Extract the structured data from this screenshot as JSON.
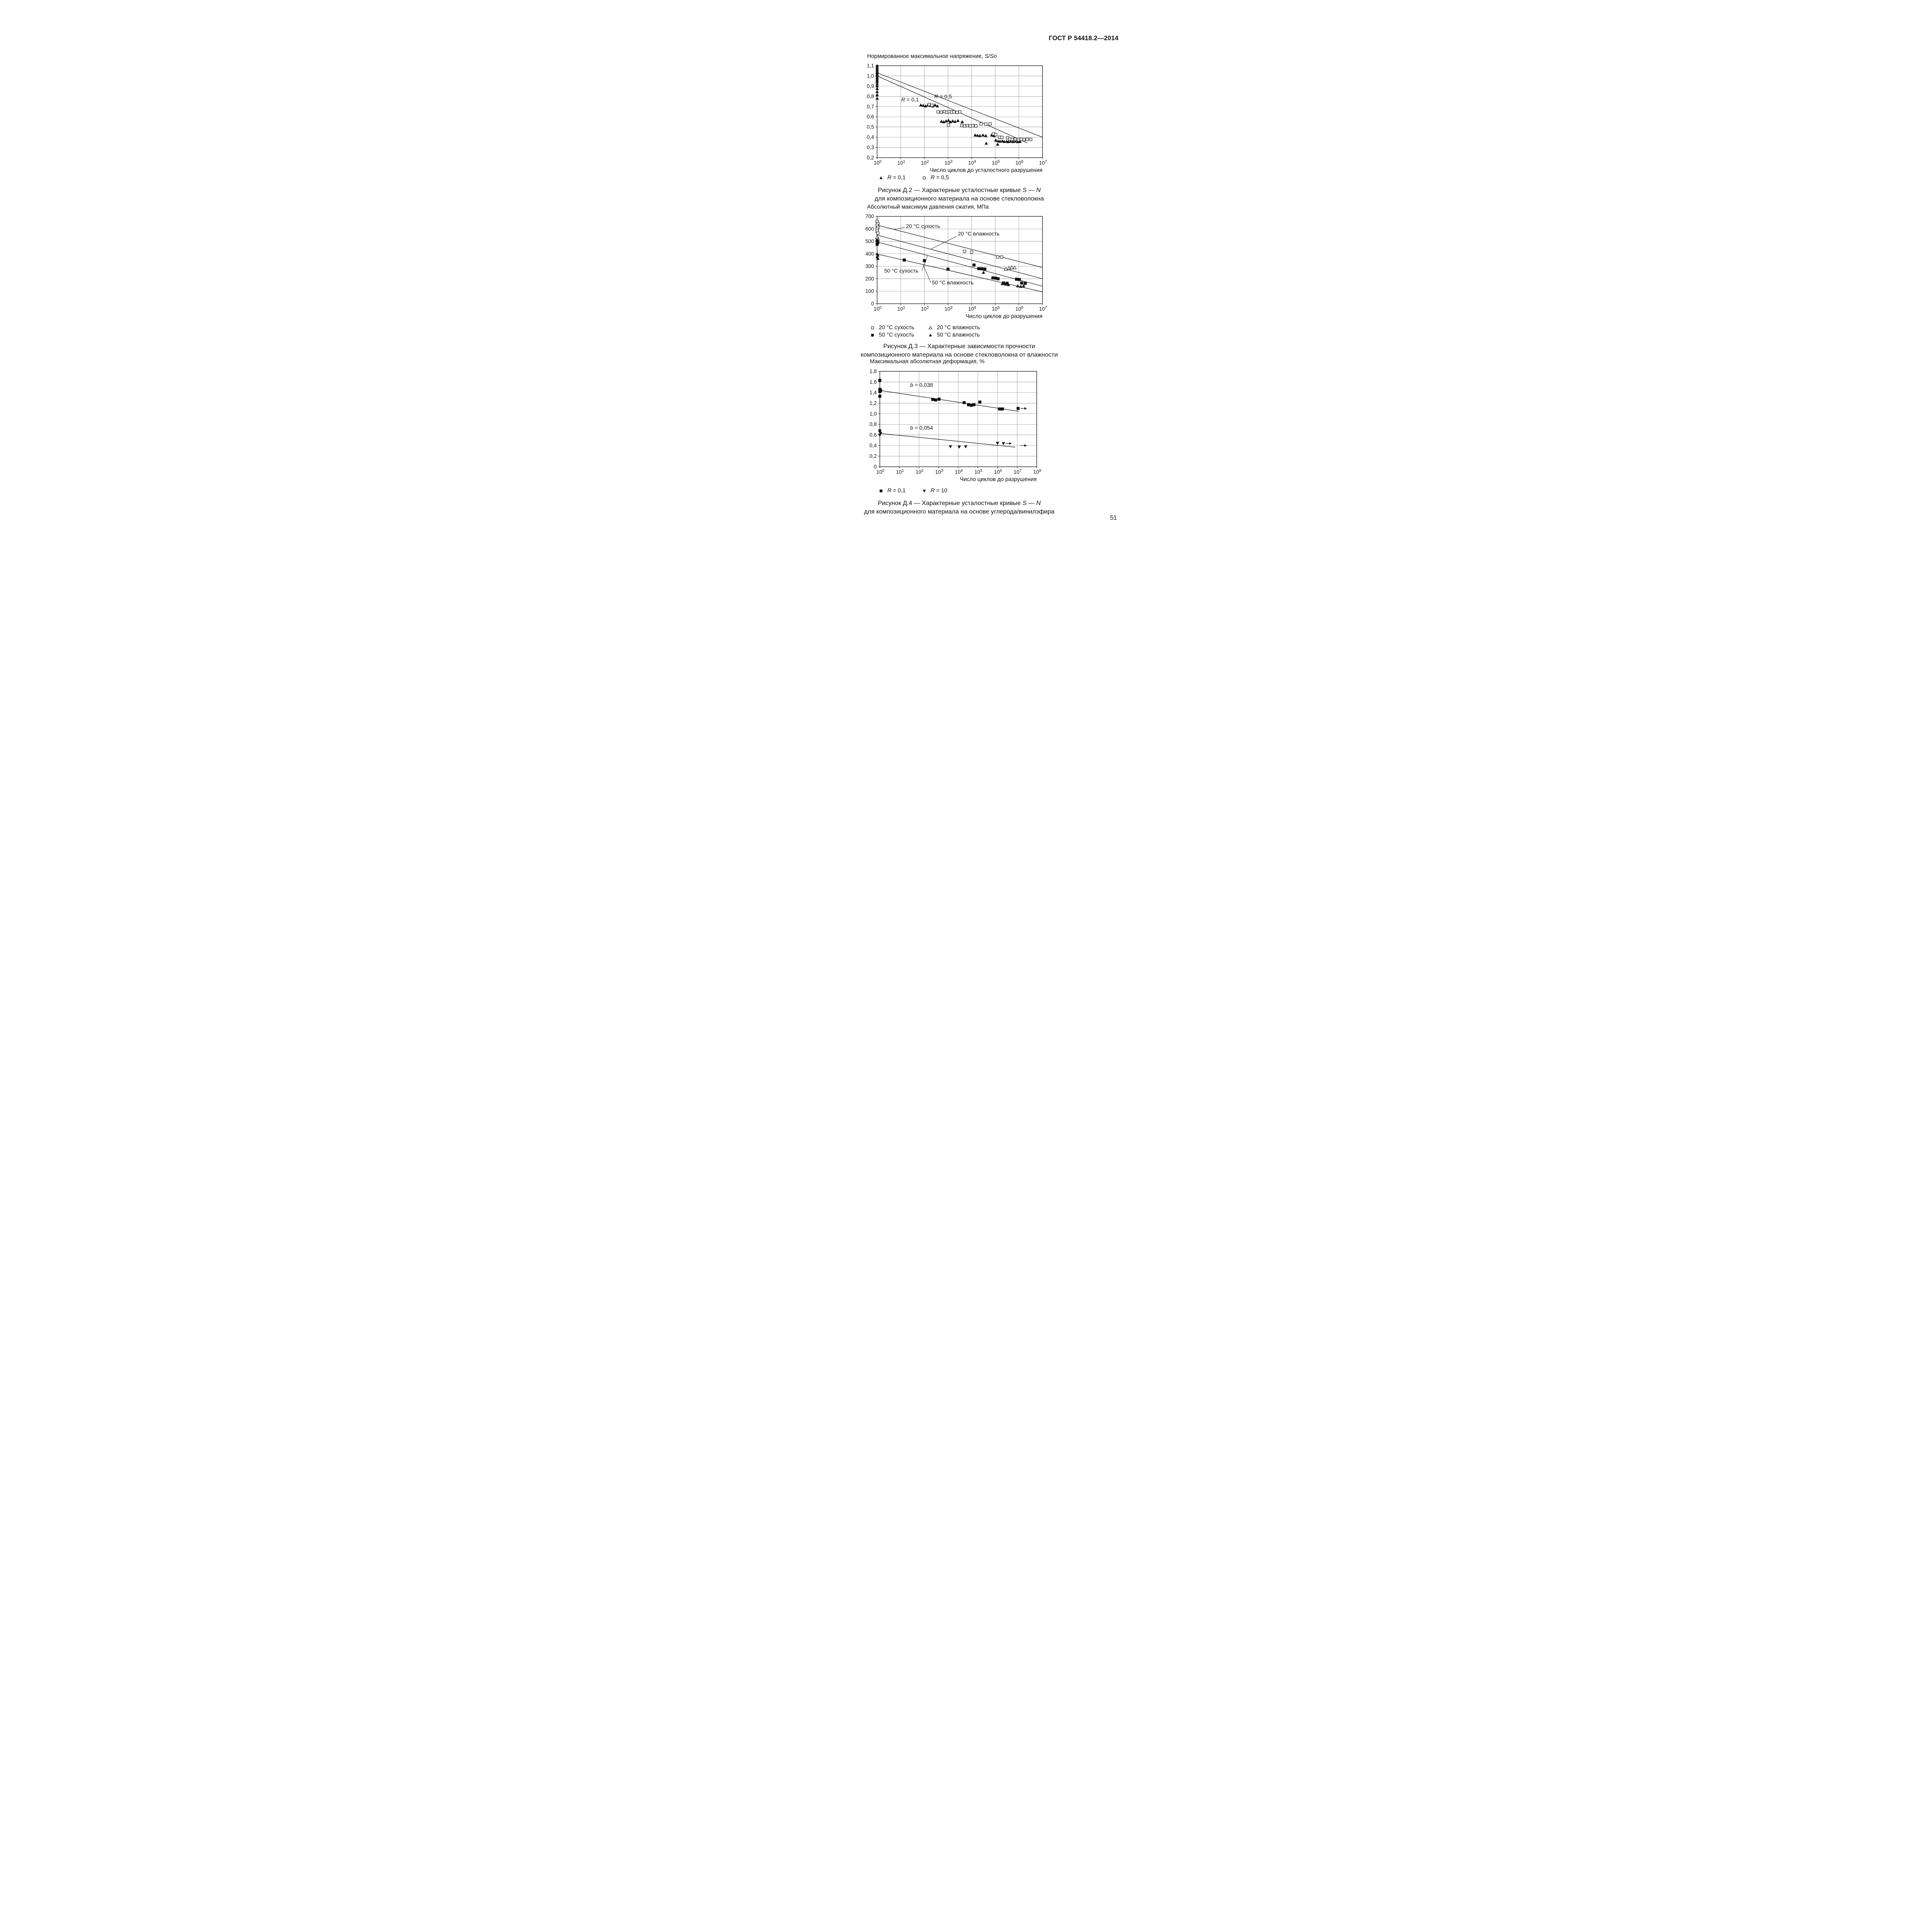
{
  "page": {
    "header": "ГОСТ Р 54418.2—2014",
    "page_number": "51"
  },
  "chart_data": [
    {
      "id": "d2",
      "type": "scatter",
      "x_scale": "log",
      "x_decades": [
        0,
        7
      ],
      "ylim": [
        0.2,
        1.1
      ],
      "y_step": 0.1,
      "y_decimals": 1,
      "grid": true,
      "title_parts": [
        {
          "t": "Нормированное максимальное напряжение, "
        },
        {
          "t": "S/So",
          "i": 1
        }
      ],
      "xlabel": "Число циклов до усталостного разрушения",
      "series": [
        {
          "name": "R = 0,1",
          "marker": "tri-up-filled",
          "points": [
            [
              0,
              1.1
            ],
            [
              0,
              1.085
            ],
            [
              0,
              1.07
            ],
            [
              0,
              1.055
            ],
            [
              0,
              1.04
            ],
            [
              0,
              1.03
            ],
            [
              0,
              1.015
            ],
            [
              0,
              1.0
            ],
            [
              0,
              0.985
            ],
            [
              0,
              0.97
            ],
            [
              0,
              0.955
            ],
            [
              0,
              0.94
            ],
            [
              0,
              0.92
            ],
            [
              0,
              0.9
            ],
            [
              0,
              0.875
            ],
            [
              0,
              0.845
            ],
            [
              0,
              0.815
            ],
            [
              0,
              0.78
            ],
            [
              1.85,
              0.715
            ],
            [
              1.95,
              0.71
            ],
            [
              2.05,
              0.705
            ],
            [
              2.15,
              0.715
            ],
            [
              2.25,
              0.71
            ],
            [
              2.35,
              0.705
            ],
            [
              2.45,
              0.715
            ],
            [
              2.55,
              0.705
            ],
            [
              2.72,
              0.555
            ],
            [
              2.82,
              0.55
            ],
            [
              2.92,
              0.558
            ],
            [
              3.02,
              0.565
            ],
            [
              3.1,
              0.55
            ],
            [
              3.2,
              0.558
            ],
            [
              3.3,
              0.553
            ],
            [
              3.42,
              0.562
            ],
            [
              3.6,
              0.55
            ],
            [
              4.15,
              0.42
            ],
            [
              4.25,
              0.418
            ],
            [
              4.35,
              0.415
            ],
            [
              4.48,
              0.42
            ],
            [
              4.6,
              0.415
            ],
            [
              4.62,
              0.34
            ],
            [
              4.85,
              0.42
            ],
            [
              4.95,
              0.415
            ],
            [
              5.02,
              0.37
            ],
            [
              5.12,
              0.362
            ],
            [
              5.1,
              0.33
            ],
            [
              5.2,
              0.36
            ],
            [
              5.3,
              0.363
            ],
            [
              5.38,
              0.357
            ],
            [
              5.48,
              0.36
            ],
            [
              5.55,
              0.355
            ],
            [
              5.65,
              0.36
            ],
            [
              5.75,
              0.356
            ],
            [
              5.85,
              0.36
            ],
            [
              5.95,
              0.355
            ],
            [
              6.05,
              0.358
            ]
          ]
        },
        {
          "name": "R = 0,5",
          "marker": "sq-open",
          "points": [
            [
              2.2,
              0.72
            ],
            [
              2.32,
              0.713
            ],
            [
              2.58,
              0.648
            ],
            [
              2.72,
              0.645
            ],
            [
              2.85,
              0.65
            ],
            [
              2.95,
              0.644
            ],
            [
              3.05,
              0.65
            ],
            [
              3.15,
              0.645
            ],
            [
              3.25,
              0.648
            ],
            [
              3.38,
              0.644
            ],
            [
              3.5,
              0.648
            ],
            [
              3.02,
              0.52
            ],
            [
              3.58,
              0.515
            ],
            [
              3.7,
              0.51
            ],
            [
              3.82,
              0.514
            ],
            [
              3.94,
              0.51
            ],
            [
              4.05,
              0.513
            ],
            [
              4.18,
              0.51
            ],
            [
              4.4,
              0.53
            ],
            [
              4.6,
              0.528
            ],
            [
              4.78,
              0.53
            ],
            [
              4.92,
              0.432
            ],
            [
              5.02,
              0.425
            ],
            [
              5.18,
              0.4
            ],
            [
              5.28,
              0.398
            ],
            [
              5.52,
              0.395
            ],
            [
              5.62,
              0.38
            ],
            [
              5.72,
              0.378
            ],
            [
              5.85,
              0.38
            ],
            [
              5.98,
              0.376
            ],
            [
              6.1,
              0.38
            ],
            [
              6.22,
              0.376
            ],
            [
              6.35,
              0.38
            ],
            [
              6.5,
              0.378
            ]
          ]
        }
      ],
      "lines": [
        [
          [
            0,
            1.0
          ],
          [
            6.35,
            0.345
          ]
        ],
        [
          [
            0,
            1.03
          ],
          [
            7.0,
            0.4
          ]
        ]
      ],
      "annotations": [
        {
          "parts": [
            {
              "t": "R",
              "i": 1
            },
            {
              "t": " = 0,1"
            }
          ],
          "x": 1.02,
          "y": 0.75
        },
        {
          "parts": [
            {
              "t": "R",
              "i": 1
            },
            {
              "t": " = 0,5"
            }
          ],
          "x": 2.42,
          "y": 0.78
        }
      ],
      "legend_rows": [
        [
          {
            "m": "tri-up-filled",
            "parts": [
              {
                "t": "R",
                "i": 1
              },
              {
                "t": " = 0,1"
              }
            ]
          },
          {
            "m": "sq-open",
            "parts": [
              {
                "t": "R",
                "i": 1
              },
              {
                "t": " = 0,5"
              }
            ]
          }
        ]
      ],
      "caption_line1": [
        {
          "t": "Рисунок Д.2 — Характерные усталостные кривые "
        },
        {
          "t": "S",
          "i": 1
        },
        {
          "t": " — "
        },
        {
          "t": "N",
          "i": 1
        }
      ],
      "caption_line2": "для композиционного материала на основе стекловолокна"
    },
    {
      "id": "d3",
      "type": "scatter",
      "x_scale": "log",
      "x_decades": [
        0,
        7
      ],
      "ylim": [
        0,
        700
      ],
      "y_step": 100,
      "y_decimals": 0,
      "grid": true,
      "title_parts": [
        {
          "t": "Абсолютный максимум давления сжатия, МПа"
        }
      ],
      "xlabel": "Число циклов до разрушения",
      "series": [
        {
          "name": "20 °C сухость",
          "marker": "sq-open",
          "points": [
            [
              0,
              660
            ],
            [
              0.03,
              643
            ],
            [
              0,
              628
            ],
            [
              0.03,
              612
            ],
            [
              0,
              597
            ],
            [
              0,
              582
            ],
            [
              0.03,
              566
            ],
            [
              3.7,
              420
            ],
            [
              4.0,
              413
            ],
            [
              5.1,
              375
            ],
            [
              5.27,
              374
            ]
          ]
        },
        {
          "name": "20 °C влажность",
          "marker": "tri-up-open",
          "points": [
            [
              0,
              533
            ],
            [
              0.03,
              518
            ],
            [
              0,
              504
            ],
            [
              5.45,
              278
            ],
            [
              5.58,
              285
            ],
            [
              5.7,
              290
            ],
            [
              5.82,
              288
            ]
          ]
        },
        {
          "name": "50 °C сухость",
          "marker": "sq-filled",
          "points": [
            [
              0,
              505
            ],
            [
              0.03,
              490
            ],
            [
              0,
              476
            ],
            [
              1.15,
              350
            ],
            [
              2.0,
              345
            ],
            [
              3.0,
              277
            ],
            [
              4.1,
              310
            ],
            [
              4.3,
              281
            ],
            [
              4.43,
              280
            ],
            [
              4.56,
              278
            ],
            [
              4.9,
              207
            ],
            [
              5.02,
              205
            ],
            [
              5.12,
              200
            ],
            [
              5.35,
              166
            ],
            [
              5.5,
              164
            ],
            [
              5.9,
              196
            ],
            [
              6.02,
              194
            ],
            [
              6.12,
              166
            ],
            [
              6.27,
              163
            ]
          ]
        },
        {
          "name": "50 °C влажность",
          "marker": "tri-up-filled",
          "points": [
            [
              0,
              400
            ],
            [
              0.03,
              388
            ],
            [
              0,
              375
            ],
            [
              0.03,
              362
            ],
            [
              4.5,
              250
            ],
            [
              5.3,
              160
            ],
            [
              5.44,
              156
            ],
            [
              5.56,
              152
            ],
            [
              5.95,
              142
            ],
            [
              6.08,
              138
            ],
            [
              6.2,
              143
            ]
          ]
        }
      ],
      "lines": [
        [
          [
            0,
            630
          ],
          [
            7,
            290
          ]
        ],
        [
          [
            0,
            550
          ],
          [
            7,
            200
          ]
        ],
        [
          [
            0,
            495
          ],
          [
            7,
            140
          ]
        ],
        [
          [
            0,
            398
          ],
          [
            7,
            95
          ]
        ]
      ],
      "annotations": [
        {
          "parts": [
            {
              "t": "20 °C сухость"
            }
          ],
          "x": 1.22,
          "y": 607,
          "leader": [
            [
              0.72,
              596
            ],
            [
              1.17,
              612
            ]
          ]
        },
        {
          "parts": [
            {
              "t": "20 °C влажность"
            }
          ],
          "x": 3.42,
          "y": 547,
          "leader": [
            [
              2.28,
              438
            ],
            [
              3.37,
              541
            ]
          ]
        },
        {
          "parts": [
            {
              "t": "50 °C сухость"
            }
          ],
          "x": 0.3,
          "y": 250,
          "leader": [
            [
              1.9,
              265
            ],
            [
              2.14,
              386
            ]
          ]
        },
        {
          "parts": [
            {
              "t": "50 °C влажность"
            }
          ],
          "x": 2.32,
          "y": 155,
          "leader": [
            [
              1.95,
              313
            ],
            [
              2.27,
              168
            ]
          ]
        }
      ],
      "legend_rows": [
        [
          {
            "m": "sq-open",
            "parts": [
              {
                "t": "20 °C сухость"
              }
            ]
          },
          {
            "m": "tri-up-open",
            "parts": [
              {
                "t": "20 °C влажность"
              }
            ]
          }
        ],
        [
          {
            "m": "sq-filled",
            "parts": [
              {
                "t": "50 °C сухость"
              }
            ]
          },
          {
            "m": "tri-up-filled",
            "parts": [
              {
                "t": "50 °C влажность"
              }
            ]
          }
        ]
      ],
      "caption_line1": [
        {
          "t": "Рисунок Д.3 — Характерные зависимости прочности"
        }
      ],
      "caption_line2": "композиционного материала на основе стекловолокна от влажности"
    },
    {
      "id": "d4",
      "type": "scatter",
      "x_scale": "log",
      "x_decades": [
        0,
        8
      ],
      "ylim": [
        0,
        1.8
      ],
      "y_step": 0.2,
      "y_decimals": 1,
      "grid": true,
      "title_parts": [
        {
          "t": "Максимальная абсолютная деформация, %"
        }
      ],
      "xlabel": "Число циклов до разрушения",
      "series": [
        {
          "name": "R = 0,1",
          "marker": "sq-filled",
          "points": [
            [
              0,
              1.63
            ],
            [
              0,
              1.46
            ],
            [
              0.04,
              1.44
            ],
            [
              0,
              1.42
            ],
            [
              0,
              1.33
            ],
            [
              2.7,
              1.27
            ],
            [
              2.85,
              1.26
            ],
            [
              3.02,
              1.275
            ],
            [
              4.3,
              1.21
            ],
            [
              4.52,
              1.17
            ],
            [
              4.66,
              1.16
            ],
            [
              4.8,
              1.17
            ],
            [
              5.1,
              1.22
            ],
            [
              6.1,
              1.09
            ],
            [
              6.25,
              1.09
            ],
            [
              7.05,
              1.1
            ]
          ]
        },
        {
          "name": "R = 10",
          "marker": "tri-down-filled",
          "points": [
            [
              0,
              0.68
            ],
            [
              0,
              0.655
            ],
            [
              0.04,
              0.63
            ],
            [
              0,
              0.6
            ],
            [
              3.6,
              0.38
            ],
            [
              4.05,
              0.375
            ],
            [
              4.38,
              0.38
            ],
            [
              6.0,
              0.445
            ],
            [
              6.3,
              0.44
            ]
          ]
        }
      ],
      "lines": [
        [
          [
            0,
            1.44
          ],
          [
            7.1,
            1.045
          ]
        ],
        [
          [
            0,
            0.63
          ],
          [
            6.9,
            0.37
          ]
        ]
      ],
      "annotations": [
        {
          "parts": [
            {
              "t": "b",
              "i": 1
            },
            {
              "t": " = 0,038"
            }
          ],
          "x": 1.55,
          "y": 1.51
        },
        {
          "parts": [
            {
              "t": "b",
              "i": 1
            },
            {
              "t": " = 0,054"
            }
          ],
          "x": 1.55,
          "y": 0.7
        }
      ],
      "runouts": [
        [
          7.35,
          1.1
        ],
        [
          6.58,
          0.44
        ],
        [
          7.35,
          0.4
        ]
      ],
      "legend_rows": [
        [
          {
            "m": "sq-filled",
            "parts": [
              {
                "t": "R",
                "i": 1
              },
              {
                "t": " = 0,1"
              }
            ]
          },
          {
            "m": "tri-down-filled",
            "parts": [
              {
                "t": "R",
                "i": 1
              },
              {
                "t": " = 10"
              }
            ]
          }
        ]
      ],
      "caption_line1": [
        {
          "t": "Рисунок Д.4 — Характерные усталостные кривые "
        },
        {
          "t": "S",
          "i": 1
        },
        {
          "t": " — "
        },
        {
          "t": "N",
          "i": 1
        }
      ],
      "caption_line2": "для композиционного материала на основе углерода/винилэфира"
    }
  ]
}
